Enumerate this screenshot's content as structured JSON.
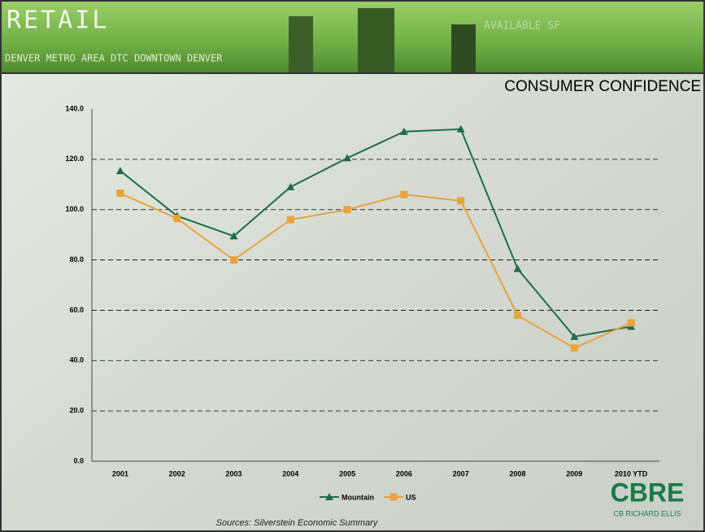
{
  "header": {
    "section": "RETAIL",
    "ticker": "DENVER METRO AREA DTC DOWNTOWN DENVER",
    "ticker_right": "AVAILABLE SF"
  },
  "chart_data": {
    "type": "line",
    "title": "CONSUMER CONFIDENCE",
    "categories": [
      "2001",
      "2002",
      "2003",
      "2004",
      "2005",
      "2006",
      "2007",
      "2008",
      "2009",
      "2010 YTD"
    ],
    "series": [
      {
        "name": "Mountain",
        "color": "#1f6b4f",
        "marker": "triangle",
        "values": [
          115.4,
          97.5,
          89.5,
          109,
          120.5,
          131,
          132,
          76.5,
          49.5,
          53.5
        ]
      },
      {
        "name": "US",
        "color": "#e8a33d",
        "marker": "square",
        "values": [
          106.5,
          96.5,
          80,
          96,
          100,
          106,
          103.5,
          58,
          45,
          55
        ]
      }
    ],
    "ylim": [
      0,
      140
    ],
    "yticks": [
      {
        "value": 0,
        "label": "0.0"
      },
      {
        "value": 20,
        "label": "20.0"
      },
      {
        "value": 40,
        "label": "40.0"
      },
      {
        "value": 60,
        "label": "60.0"
      },
      {
        "value": 80,
        "label": "80.0"
      },
      {
        "value": 100,
        "label": "100.0"
      },
      {
        "value": 120,
        "label": "120.0"
      },
      {
        "value": 140,
        "label": "140.0"
      }
    ],
    "grid": true,
    "legend": "bottom",
    "source": "Sources: Silverstein Economic Summary"
  },
  "logo": {
    "brand": "CBRE",
    "name": "CB RICHARD ELLIS"
  }
}
